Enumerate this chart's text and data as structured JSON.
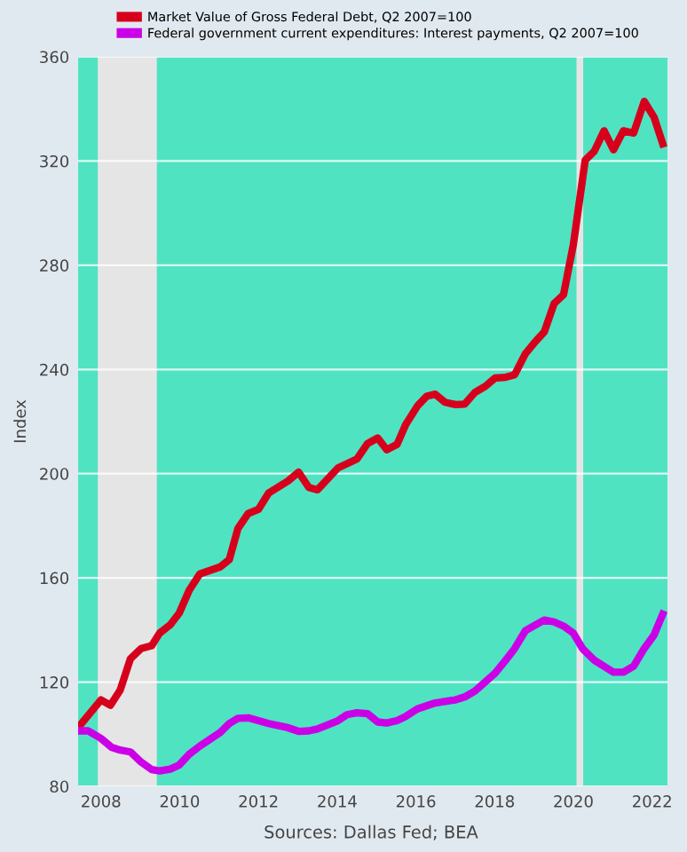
{
  "chart_data": {
    "type": "line",
    "ylabel": "Index",
    "annotations": [
      "Sources: Dallas Fed; BEA"
    ],
    "xlim": [
      2007.42,
      2022.39
    ],
    "xticks": [
      2008,
      2010,
      2012,
      2014,
      2016,
      2018,
      2020,
      2022
    ],
    "ylim": [
      80,
      360
    ],
    "yticks": [
      80,
      120,
      160,
      200,
      240,
      280,
      320,
      360
    ],
    "grid": "y",
    "legend": "top",
    "marker": "none",
    "line_style": "solid",
    "bands": [
      {
        "axis": "x",
        "from": 2007.92,
        "to": 2009.42,
        "color": "#e5e5e5"
      },
      {
        "axis": "x",
        "from": 2020.08,
        "to": 2020.25,
        "color": "#e5e5e5"
      }
    ],
    "series": [
      {
        "name": "Market Value of Gross Federal Debt, Q2 2007=100",
        "color": "#d6001c",
        "x": [
          2007.42,
          2008.0,
          2008.24,
          2008.49,
          2008.75,
          2009.02,
          2009.29,
          2009.49,
          2009.76,
          2009.99,
          2010.24,
          2010.51,
          2011.03,
          2011.26,
          2011.48,
          2011.74,
          2012.0,
          2012.26,
          2012.75,
          2013.02,
          2013.28,
          2013.5,
          2014.02,
          2014.5,
          2014.77,
          2015.03,
          2015.26,
          2015.52,
          2015.74,
          2016.04,
          2016.27,
          2016.49,
          2016.74,
          2017.01,
          2017.24,
          2017.5,
          2017.76,
          2018.01,
          2018.28,
          2018.51,
          2018.78,
          2019.03,
          2019.26,
          2019.51,
          2019.75,
          2020.0,
          2020.3,
          2020.53,
          2020.78,
          2021.02,
          2021.27,
          2021.53,
          2021.8,
          2022.05,
          2022.27
        ],
        "values": [
          102.5,
          113.2,
          111.1,
          117,
          129,
          132.9,
          134,
          138.8,
          142,
          146.5,
          155.2,
          161.5,
          164.2,
          167,
          179,
          184.7,
          186.3,
          192.6,
          197.2,
          200.6,
          194.7,
          193.8,
          202.2,
          205.6,
          211.5,
          213.7,
          209.2,
          211.2,
          218.8,
          226,
          229.7,
          230.5,
          227.4,
          226.5,
          226.7,
          231.2,
          233.5,
          236.7,
          237,
          238,
          246,
          250.6,
          254.4,
          265.3,
          268.7,
          288,
          320.3,
          323.7,
          331.6,
          324.3,
          331.6,
          330.7,
          342.9,
          336.8,
          326.6
        ]
      },
      {
        "name": "Federal government current expenditures: Interest payments, Q2 2007=100",
        "color": "#cc00e6",
        "x": [
          2007.42,
          2007.67,
          2008.0,
          2008.27,
          2008.49,
          2008.75,
          2009.02,
          2009.29,
          2009.49,
          2009.76,
          2009.99,
          2010.24,
          2010.51,
          2011.03,
          2011.26,
          2011.48,
          2011.74,
          2012.0,
          2012.26,
          2012.75,
          2013.02,
          2013.28,
          2013.5,
          2014.02,
          2014.25,
          2014.5,
          2014.77,
          2015.03,
          2015.26,
          2015.52,
          2015.74,
          2016.04,
          2016.49,
          2017.01,
          2017.24,
          2017.5,
          2018.01,
          2018.28,
          2018.51,
          2018.78,
          2019.26,
          2019.51,
          2019.75,
          2020.0,
          2020.23,
          2020.53,
          2021.02,
          2021.27,
          2021.53,
          2021.8,
          2022.05,
          2022.27
        ],
        "values": [
          101.3,
          101.3,
          98.4,
          95,
          93.9,
          93.2,
          89.3,
          86.4,
          85.9,
          86.6,
          88.2,
          92.3,
          95.4,
          100.7,
          104.1,
          106.1,
          106.3,
          105.2,
          104.1,
          102.5,
          101.1,
          101.3,
          102,
          105.2,
          107.5,
          108.2,
          107.9,
          104.7,
          104.3,
          105.2,
          106.8,
          109.7,
          112,
          113.2,
          114.3,
          116.6,
          123.4,
          128.4,
          132.9,
          139.7,
          143.8,
          143.1,
          141.5,
          138.8,
          132.9,
          128.4,
          123.8,
          123.8,
          126.1,
          132.9,
          138.1,
          146.1
        ]
      }
    ]
  }
}
